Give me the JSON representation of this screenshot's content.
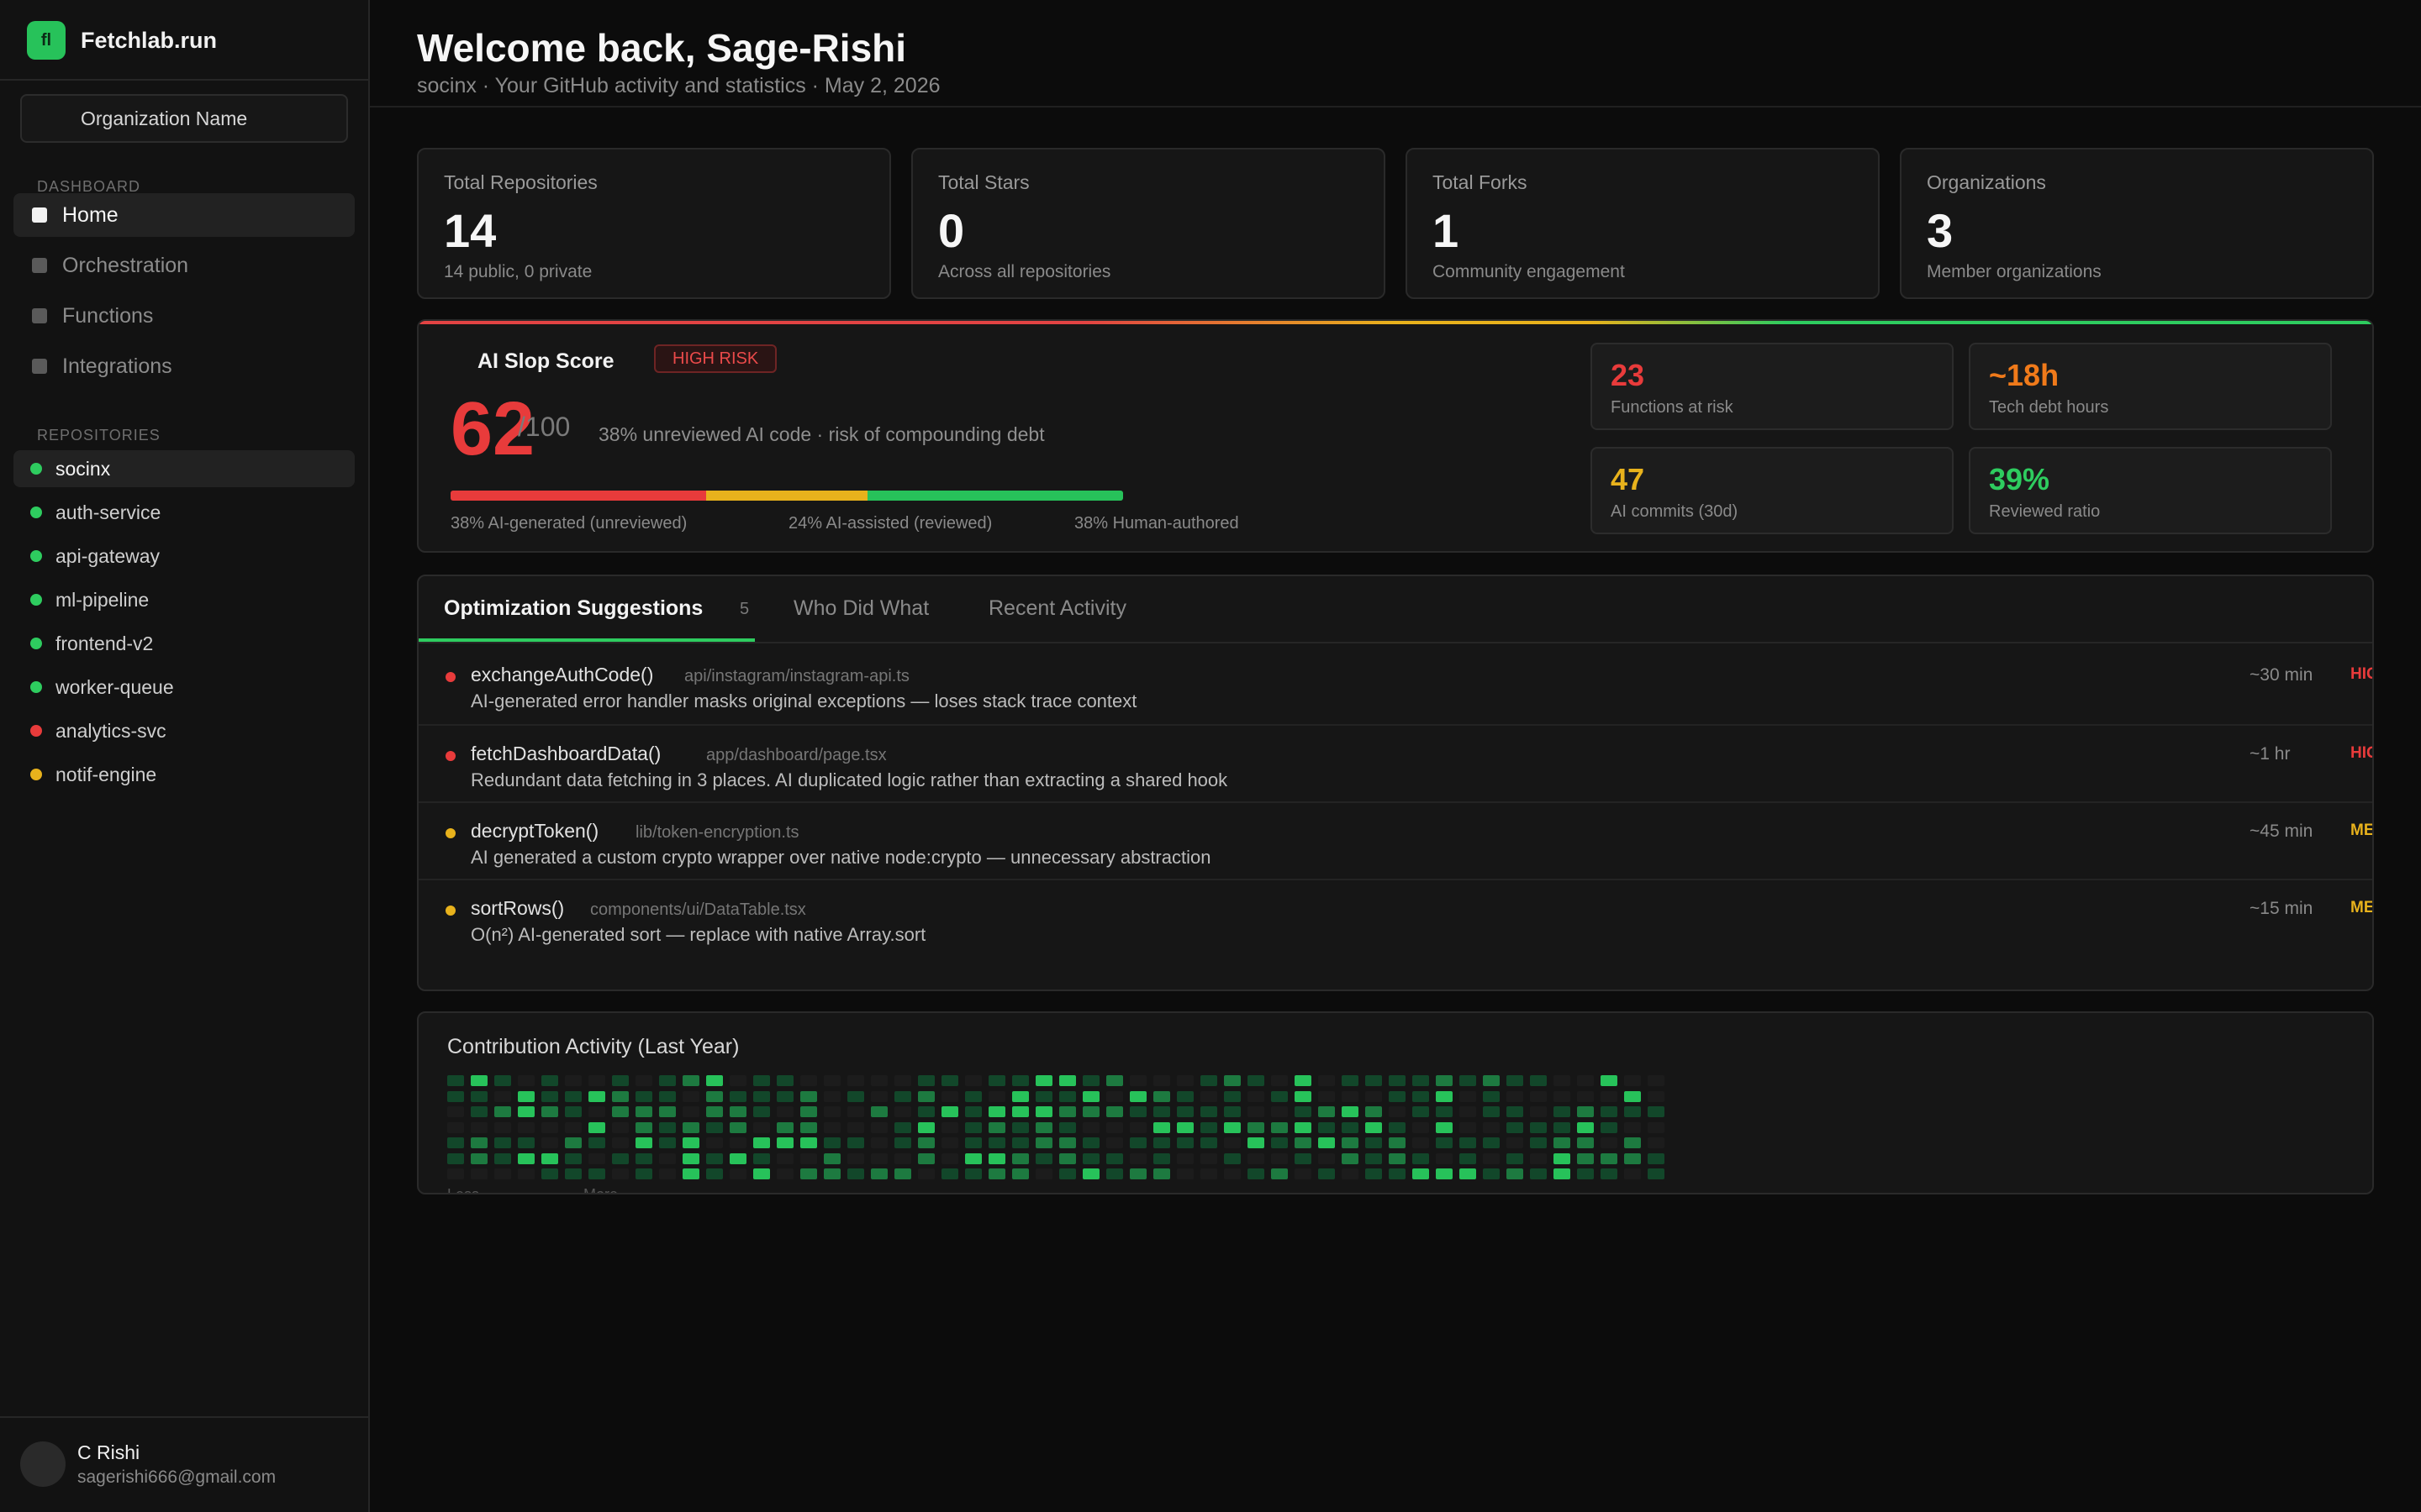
{
  "brand": {
    "logo": "fl",
    "name": "Fetchlab.run"
  },
  "org_select": {
    "label": "Organization Name"
  },
  "sidebar": {
    "dashboard_label": "DASHBOARD",
    "nav": [
      {
        "label": "Home",
        "active": true
      },
      {
        "label": "Orchestration",
        "active": false
      },
      {
        "label": "Functions",
        "active": false
      },
      {
        "label": "Integrations",
        "active": false
      }
    ],
    "repositories_label": "REPOSITORIES",
    "repos": [
      {
        "name": "socinx",
        "status": "green",
        "active": true
      },
      {
        "name": "auth-service",
        "status": "green",
        "active": false
      },
      {
        "name": "api-gateway",
        "status": "green",
        "active": false
      },
      {
        "name": "ml-pipeline",
        "status": "green",
        "active": false
      },
      {
        "name": "frontend-v2",
        "status": "green",
        "active": false
      },
      {
        "name": "worker-queue",
        "status": "green",
        "active": false
      },
      {
        "name": "analytics-svc",
        "status": "red",
        "active": false
      },
      {
        "name": "notif-engine",
        "status": "yellow",
        "active": false
      }
    ]
  },
  "user": {
    "name": "C Rishi",
    "email": "sagerishi666@gmail.com"
  },
  "header": {
    "title": "Welcome back, Sage-Rishi",
    "subtitle": "socinx  ·  Your GitHub activity and statistics · May 2, 2026"
  },
  "stats": [
    {
      "label": "Total Repositories",
      "value": "14",
      "sub": "14 public, 0 private"
    },
    {
      "label": "Total Stars",
      "value": "0",
      "sub": "Across all repositories"
    },
    {
      "label": "Total Forks",
      "value": "1",
      "sub": "Community engagement"
    },
    {
      "label": "Organizations",
      "value": "3",
      "sub": "Member organizations"
    }
  ],
  "slop": {
    "title": "AI Slop Score",
    "badge": "HIGH RISK",
    "score": "62",
    "max": "/100",
    "description": "38% unreviewed AI code · risk of compounding debt",
    "legend": [
      "38% AI-generated (unreviewed)",
      "24% AI-assisted (reviewed)",
      "38% Human-authored"
    ],
    "bar_shares": [
      0.38,
      0.24,
      0.38
    ],
    "metrics": [
      {
        "value": "23",
        "label": "Functions at risk",
        "color": "#e83b3b"
      },
      {
        "value": "~18h",
        "label": "Tech debt hours",
        "color": "#f07a1a"
      },
      {
        "value": "47",
        "label": "AI commits (30d)",
        "color": "#e8b21c"
      },
      {
        "value": "39%",
        "label": "Reviewed ratio",
        "color": "#2ecc5f"
      }
    ]
  },
  "tabs": {
    "items": [
      "Optimization Suggestions",
      "Who Did What",
      "Recent Activity"
    ],
    "count": "5"
  },
  "suggestions": [
    {
      "fn": "exchangeAuthCode()",
      "path": "api/instagram/instagram-api.ts",
      "desc": "AI-generated error handler masks original exceptions — loses stack trace context",
      "time": "~30 min",
      "severity": "HIG",
      "color": "#e83b3b"
    },
    {
      "fn": "fetchDashboardData()",
      "path": "app/dashboard/page.tsx",
      "desc": "Redundant data fetching in 3 places. AI duplicated logic rather than extracting a shared hook",
      "time": "~1 hr",
      "severity": "HIG",
      "color": "#e83b3b"
    },
    {
      "fn": "decryptToken()",
      "path": "lib/token-encryption.ts",
      "desc": "AI generated a custom crypto wrapper over native node:crypto — unnecessary abstraction",
      "time": "~45 min",
      "severity": "ME",
      "color": "#e8b21c"
    },
    {
      "fn": "sortRows()",
      "path": "components/ui/DataTable.tsx",
      "desc": "O(n²) AI-generated sort — replace with native Array.sort",
      "time": "~15 min",
      "severity": "ME",
      "color": "#e8b21c"
    }
  ],
  "contrib": {
    "title": "Contribution Activity (Last Year)",
    "legend_less": "Less",
    "legend_more": "More",
    "level_colors": [
      "#1c1c1c",
      "#12472a",
      "#1d7a40",
      "#27c25a"
    ]
  }
}
